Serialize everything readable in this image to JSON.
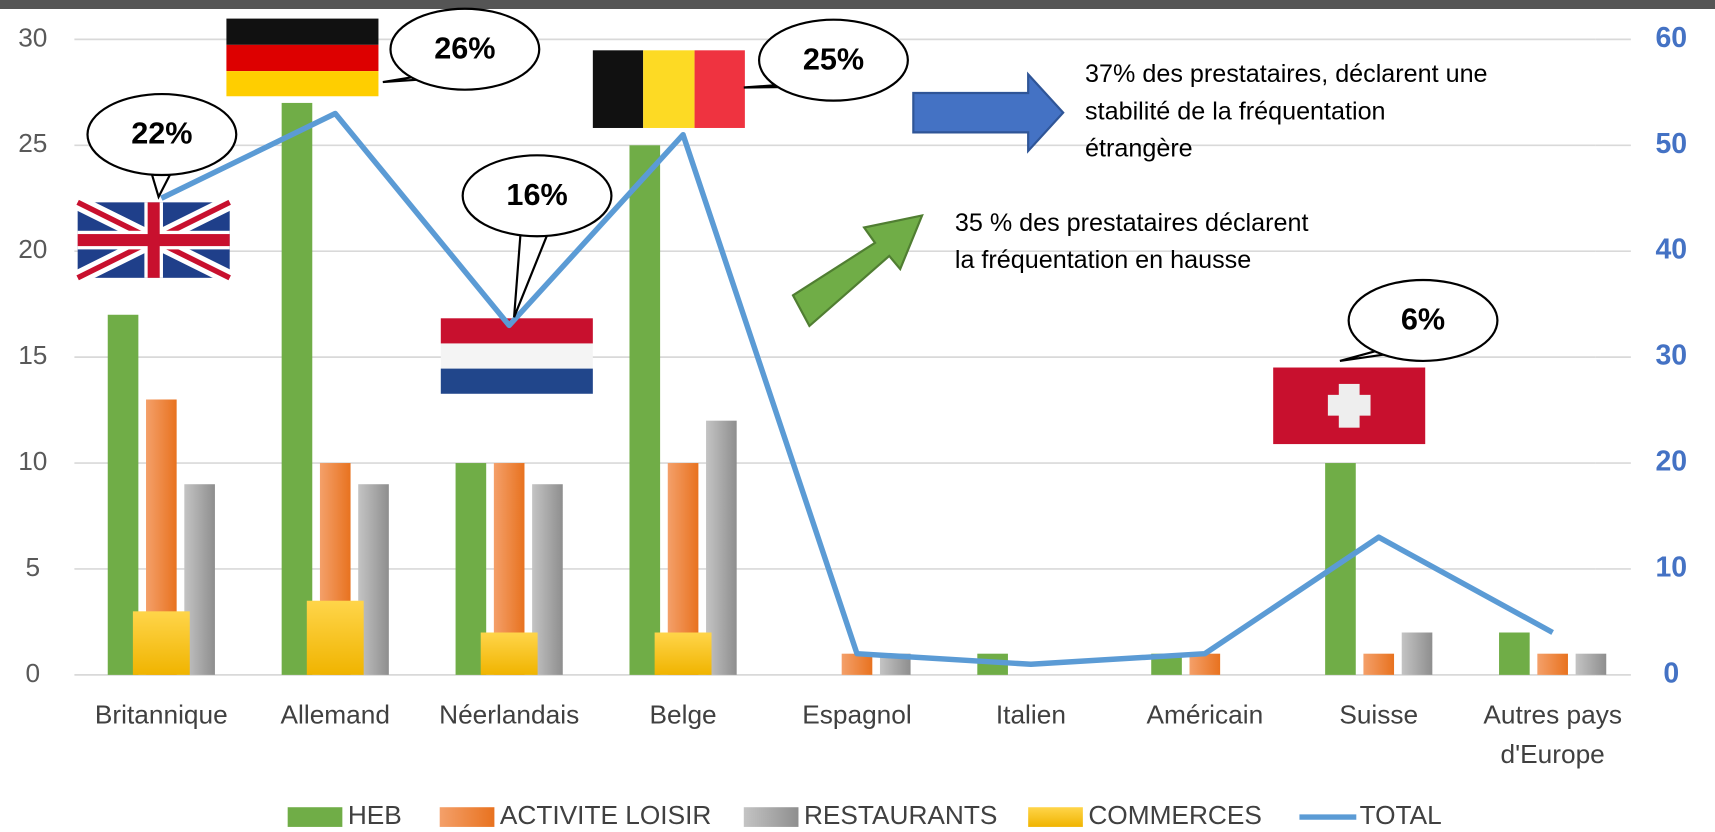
{
  "chart_data": {
    "type": "bar",
    "categories": [
      "Britannique",
      "Allemand",
      "Néerlandais",
      "Belge",
      "Espagnol",
      "Italien",
      "Américain",
      "Suisse",
      [
        "Autres pays",
        "d'Europe"
      ]
    ],
    "series": [
      {
        "name": "HEB",
        "color": "#70ad47",
        "values": [
          17,
          27,
          10,
          25,
          0,
          1,
          1,
          10,
          2
        ]
      },
      {
        "name": "ACTIVITE LOISIR",
        "color": "#ed7d31",
        "values": [
          13,
          10,
          10,
          10,
          1,
          0,
          1,
          1,
          1
        ]
      },
      {
        "name": "RESTAURANTS",
        "color": "#a5a5a5",
        "values": [
          9,
          9,
          9,
          12,
          1,
          0,
          0,
          2,
          1
        ]
      },
      {
        "name": "COMMERCES",
        "color": "#ffc000",
        "values": [
          3,
          3.5,
          2,
          2,
          0,
          0,
          0,
          0,
          0
        ]
      },
      {
        "name": "TOTAL",
        "color": "#5b9bd5",
        "type": "line",
        "axis": "y2",
        "values": [
          45,
          53,
          33,
          51,
          2,
          1,
          2,
          13,
          4
        ]
      }
    ],
    "ylim": [
      0,
      30
    ],
    "yticks": [
      0,
      5,
      10,
      15,
      20,
      25,
      30
    ],
    "y2lim": [
      0,
      60
    ],
    "y2ticks": [
      0,
      10,
      20,
      30,
      40,
      50,
      60
    ],
    "grid": true,
    "legend": "bottom",
    "annotations": [
      {
        "text": "22%",
        "category": 0
      },
      {
        "text": "26%",
        "category": 1
      },
      {
        "text": "16%",
        "category": 2
      },
      {
        "text": "25%",
        "category": 3
      },
      {
        "text": "6%",
        "category": 7
      },
      {
        "text": [
          "37% des prestataires, déclarent une",
          "stabilité de la fréquentation",
          "étrangère"
        ]
      },
      {
        "text": [
          "35 % des prestataires déclarent",
          "la fréquentation en hausse"
        ]
      }
    ]
  }
}
